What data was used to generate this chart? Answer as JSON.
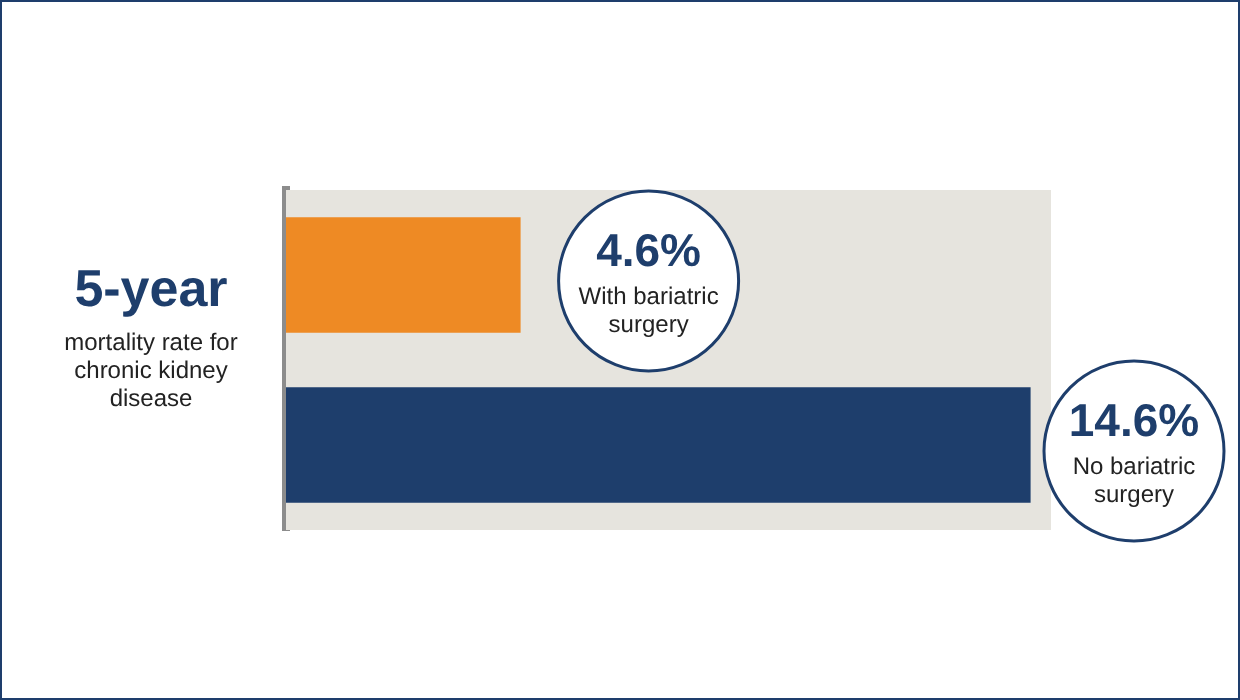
{
  "chart_data": {
    "type": "bar",
    "orientation": "horizontal",
    "ylabel": "5-year",
    "annotations": [
      "mortality rate for chronic kidney disease"
    ],
    "categories": [
      null
    ],
    "legend": false,
    "bands": [
      {
        "axis": "x",
        "from": 0,
        "to": 15,
        "color": "#e6e4de"
      }
    ],
    "series": [
      {
        "name": "With bariatric surgery",
        "color": "#ee8a24",
        "values": [
          4.6
        ],
        "value_labels": [
          "4.6%"
        ]
      },
      {
        "name": "No bariatric surgery",
        "color": "#1e3e6c",
        "values": [
          14.6
        ],
        "value_labels": [
          "14.6%"
        ]
      }
    ]
  }
}
